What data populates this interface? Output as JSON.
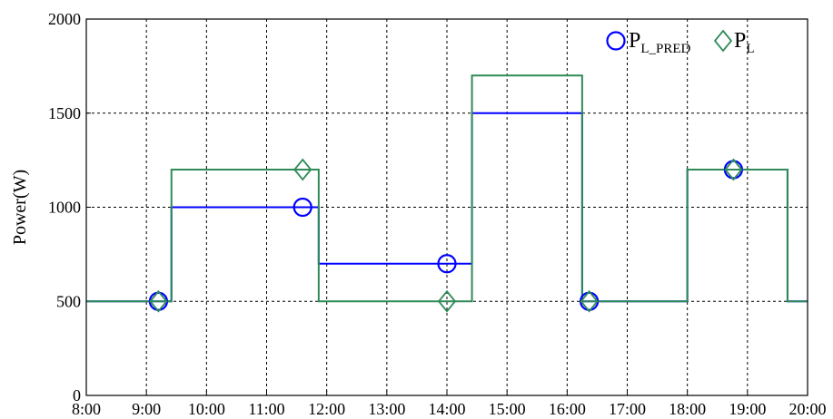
{
  "chart_data": {
    "type": "line",
    "title": "",
    "xlabel": "",
    "ylabel": "Power(W)",
    "xlim": [
      "8:00",
      "20:00"
    ],
    "ylim": [
      0,
      2000
    ],
    "grid": true,
    "legend_placement": "top-right",
    "x_ticks": [
      "8:00",
      "9:00",
      "10:00",
      "11:00",
      "12:00",
      "13:00",
      "14:00",
      "15:00",
      "16:00",
      "17:00",
      "18:00",
      "19:00",
      "20:00"
    ],
    "y_ticks": [
      0,
      500,
      1000,
      1500,
      2000
    ],
    "legend": {
      "pred": {
        "main": "P",
        "sub": "L_PRED"
      },
      "actual": {
        "main": "P",
        "sub": "L"
      }
    },
    "series": [
      {
        "key": "pred",
        "color": "#0000ff",
        "marker": "circle",
        "steps": [
          {
            "x": "8:00",
            "y": 500
          },
          {
            "x": "9:25",
            "y": 1000
          },
          {
            "x": "11:52",
            "y": 700
          },
          {
            "x": "14:25",
            "y": 1500
          },
          {
            "x": "16:15",
            "y": 500
          },
          {
            "x": "18:00",
            "y": 1200
          },
          {
            "x": "19:40",
            "y": 500
          },
          {
            "x": "20:00",
            "y": 500
          }
        ],
        "markers": [
          {
            "x": "9:12",
            "y": 500
          },
          {
            "x": "11:36",
            "y": 1000
          },
          {
            "x": "14:00",
            "y": 700
          },
          {
            "x": "16:22",
            "y": 500
          },
          {
            "x": "18:46",
            "y": 1200
          }
        ]
      },
      {
        "key": "actual",
        "color": "#2e8b57",
        "marker": "diamond",
        "steps": [
          {
            "x": "8:00",
            "y": 500
          },
          {
            "x": "9:25",
            "y": 1200
          },
          {
            "x": "11:52",
            "y": 500
          },
          {
            "x": "14:25",
            "y": 1700
          },
          {
            "x": "16:15",
            "y": 500
          },
          {
            "x": "18:00",
            "y": 1200
          },
          {
            "x": "19:40",
            "y": 500
          },
          {
            "x": "20:00",
            "y": 500
          }
        ],
        "markers": [
          {
            "x": "9:12",
            "y": 500
          },
          {
            "x": "11:36",
            "y": 1200
          },
          {
            "x": "14:00",
            "y": 500
          },
          {
            "x": "16:22",
            "y": 500
          },
          {
            "x": "18:46",
            "y": 1200
          }
        ]
      }
    ]
  }
}
